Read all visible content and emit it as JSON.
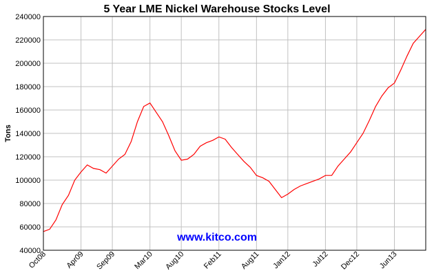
{
  "chart_data": {
    "type": "line",
    "title": "5 Year LME Nickel Warehouse Stocks Level",
    "ylabel": "Tons",
    "xlabel": "",
    "ylim": [
      40000,
      240000
    ],
    "yticks": [
      40000,
      60000,
      80000,
      100000,
      120000,
      140000,
      160000,
      180000,
      200000,
      220000,
      240000
    ],
    "ytick_labels": [
      "40000",
      "60000",
      "80000",
      "100000",
      "120000",
      "140000",
      "160000",
      "180000",
      "200000",
      "220000",
      "240000"
    ],
    "xlim": [
      "2008-10",
      "2013-11"
    ],
    "xticks": [
      "2008-10",
      "2009-04",
      "2009-09",
      "2010-03",
      "2010-08",
      "2011-02",
      "2011-08",
      "2012-01",
      "2012-07",
      "2012-12",
      "2013-06"
    ],
    "xtick_labels": [
      "Oct08",
      "Apr09",
      "Sep09",
      "Mar10",
      "Aug10",
      "Feb11",
      "Aug11",
      "Jan12",
      "Jul12",
      "Dec12",
      "Jun13"
    ],
    "grid": true,
    "line_color": "#ff0000",
    "series": [
      {
        "x": [
          "2008-10",
          "2008-11",
          "2008-12",
          "2009-01",
          "2009-02",
          "2009-03",
          "2009-04",
          "2009-05",
          "2009-06",
          "2009-07",
          "2009-08",
          "2009-09",
          "2009-10",
          "2009-11",
          "2009-12",
          "2010-01",
          "2010-02",
          "2010-03",
          "2010-04",
          "2010-05",
          "2010-06",
          "2010-07",
          "2010-08",
          "2010-09",
          "2010-10",
          "2010-11",
          "2010-12",
          "2011-01",
          "2011-02",
          "2011-03",
          "2011-04",
          "2011-05",
          "2011-06",
          "2011-07",
          "2011-08",
          "2011-09",
          "2011-10",
          "2011-11",
          "2011-12",
          "2012-01",
          "2012-02",
          "2012-03",
          "2012-04",
          "2012-05",
          "2012-06",
          "2012-07",
          "2012-08",
          "2012-09",
          "2012-10",
          "2012-11",
          "2012-12",
          "2013-01",
          "2013-02",
          "2013-03",
          "2013-04",
          "2013-05",
          "2013-06",
          "2013-07",
          "2013-08",
          "2013-09",
          "2013-10",
          "2013-11"
        ],
        "values": [
          56000,
          58000,
          66000,
          79000,
          87000,
          100000,
          107000,
          113000,
          110000,
          109000,
          106000,
          112000,
          118000,
          122000,
          133000,
          150000,
          163000,
          166000,
          158000,
          150000,
          138000,
          125000,
          117000,
          118000,
          122000,
          129000,
          132000,
          134000,
          137000,
          135000,
          128000,
          122000,
          116000,
          111000,
          104000,
          102000,
          99000,
          92000,
          85000,
          88000,
          92000,
          95000,
          97000,
          99000,
          101000,
          104000,
          104000,
          112000,
          118000,
          124000,
          132000,
          140000,
          151000,
          163000,
          172000,
          179000,
          183000,
          194000,
          206000,
          217000,
          223000,
          229000
        ]
      }
    ]
  },
  "watermark": {
    "text": "www.kitco.com",
    "color": "#0000ff"
  }
}
